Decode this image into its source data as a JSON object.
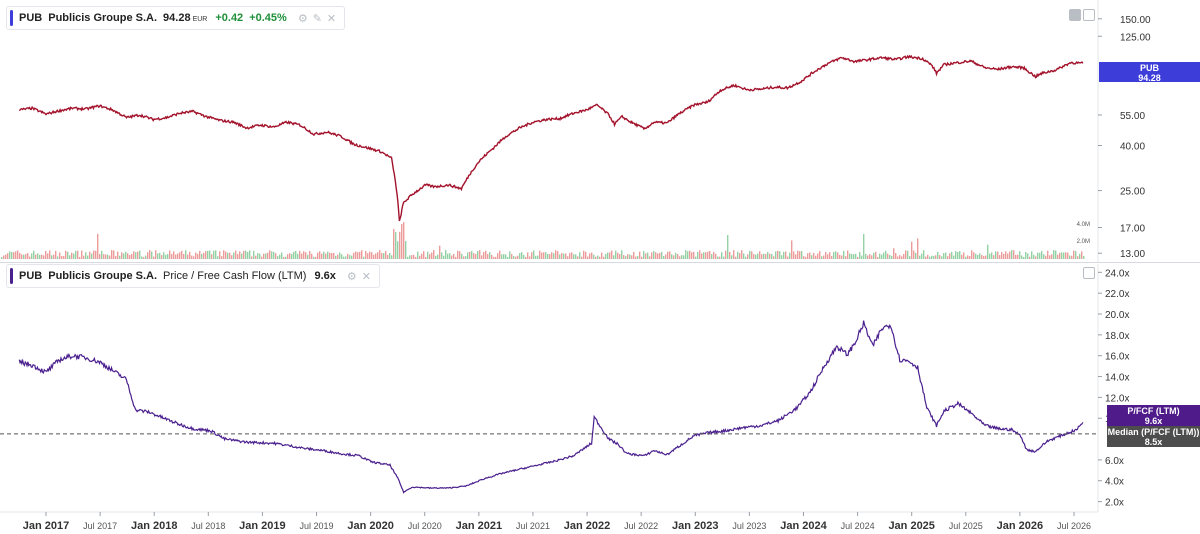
{
  "chart_data": [
    {
      "type": "line",
      "pane": "price",
      "ticker": "PUB",
      "company": "Publicis Groupe S.A.",
      "last_price": "94.28",
      "currency": "EUR",
      "change": "+0.42",
      "change_pct": "+0.45%",
      "scale": "log",
      "ylim": [
        12.5,
        175
      ],
      "y_ticks": [
        "150.00",
        "125.00",
        "55.00",
        "40.00",
        "25.00",
        "17.00",
        "13.00"
      ],
      "last_tag": {
        "label": "PUB",
        "value": "94.28",
        "color": "#3d3dd9"
      },
      "line_color": "#a3122b",
      "series": [
        {
          "values": [
            [
              "2016-09-01",
              58
            ],
            [
              "2016-10-15",
              59
            ],
            [
              "2016-12-01",
              55.5
            ],
            [
              "2017-01-15",
              57.5
            ],
            [
              "2017-03-01",
              59
            ],
            [
              "2017-04-15",
              58.5
            ],
            [
              "2017-06-01",
              60.5
            ],
            [
              "2017-07-15",
              58
            ],
            [
              "2017-09-01",
              53.5
            ],
            [
              "2017-10-15",
              55
            ],
            [
              "2017-12-01",
              52.5
            ],
            [
              "2018-01-15",
              53.5
            ],
            [
              "2018-03-01",
              56
            ],
            [
              "2018-04-15",
              57
            ],
            [
              "2018-06-01",
              54
            ],
            [
              "2018-07-15",
              52
            ],
            [
              "2018-09-01",
              51
            ],
            [
              "2018-10-15",
              48
            ],
            [
              "2018-12-01",
              49.5
            ],
            [
              "2019-01-15",
              48.5
            ],
            [
              "2019-03-01",
              51
            ],
            [
              "2019-04-15",
              49.5
            ],
            [
              "2019-06-01",
              45
            ],
            [
              "2019-07-15",
              46
            ],
            [
              "2019-09-01",
              44
            ],
            [
              "2019-10-15",
              40.5
            ],
            [
              "2019-12-01",
              39
            ],
            [
              "2020-01-15",
              37.5
            ],
            [
              "2020-02-20",
              35
            ],
            [
              "2020-03-10",
              24
            ],
            [
              "2020-03-18",
              18
            ],
            [
              "2020-04-01",
              22
            ],
            [
              "2020-05-01",
              24
            ],
            [
              "2020-06-15",
              26.5
            ],
            [
              "2020-07-15",
              26
            ],
            [
              "2020-09-01",
              26.5
            ],
            [
              "2020-10-15",
              25.5
            ],
            [
              "2020-11-15",
              30
            ],
            [
              "2020-12-15",
              34
            ],
            [
              "2021-02-01",
              39
            ],
            [
              "2021-03-15",
              44
            ],
            [
              "2021-05-01",
              48
            ],
            [
              "2021-06-15",
              51
            ],
            [
              "2021-08-01",
              52.5
            ],
            [
              "2021-09-15",
              53
            ],
            [
              "2021-11-01",
              56
            ],
            [
              "2021-12-15",
              58
            ],
            [
              "2022-01-20",
              61
            ],
            [
              "2022-03-01",
              55
            ],
            [
              "2022-03-20",
              50
            ],
            [
              "2022-04-15",
              54
            ],
            [
              "2022-05-15",
              51
            ],
            [
              "2022-07-01",
              47.5
            ],
            [
              "2022-08-01",
              51
            ],
            [
              "2022-09-15",
              50.5
            ],
            [
              "2022-10-20",
              55
            ],
            [
              "2022-12-15",
              61
            ],
            [
              "2023-02-01",
              63
            ],
            [
              "2023-03-15",
              71
            ],
            [
              "2023-05-01",
              75
            ],
            [
              "2023-06-15",
              71.5
            ],
            [
              "2023-08-01",
              72
            ],
            [
              "2023-09-15",
              73.5
            ],
            [
              "2023-11-01",
              73
            ],
            [
              "2023-12-15",
              78
            ],
            [
              "2024-02-01",
              87
            ],
            [
              "2024-03-15",
              94
            ],
            [
              "2024-05-01",
              100
            ],
            [
              "2024-06-15",
              96
            ],
            [
              "2024-08-01",
              98
            ],
            [
              "2024-09-15",
              100
            ],
            [
              "2024-11-01",
              98
            ],
            [
              "2024-12-15",
              101
            ],
            [
              "2025-02-01",
              99
            ],
            [
              "2025-03-05",
              92
            ],
            [
              "2025-03-20",
              85
            ],
            [
              "2025-04-15",
              93
            ],
            [
              "2025-06-01",
              95
            ],
            [
              "2025-07-15",
              96.5
            ],
            [
              "2025-09-01",
              90
            ],
            [
              "2025-10-15",
              88.5
            ],
            [
              "2025-12-01",
              91
            ],
            [
              "2026-01-10",
              90
            ],
            [
              "2026-02-20",
              82
            ],
            [
              "2026-03-15",
              85
            ],
            [
              "2026-05-01",
              88
            ],
            [
              "2026-06-20",
              95
            ],
            [
              "2026-07-31",
              94.28
            ]
          ]
        }
      ],
      "volume": {
        "labels": [
          "4.0M",
          "2.0M"
        ],
        "colors": [
          "#e98a8a",
          "#80c894"
        ]
      }
    },
    {
      "type": "line",
      "pane": "ratio",
      "ticker": "PUB",
      "company": "Publicis Groupe S.A.",
      "metric": "Price / Free Cash Flow (LTM)",
      "last_value": "9.6x",
      "ylim": [
        1.0,
        24.8
      ],
      "y_ticks": [
        "24.0x",
        "22.0x",
        "20.0x",
        "18.0x",
        "16.0x",
        "14.0x",
        "12.0x",
        "10.0x",
        "6.0x",
        "4.0x",
        "2.0x"
      ],
      "x_ticks": [
        "Jan 2017",
        "Jul 2017",
        "Jan 2018",
        "Jul 2018",
        "Jan 2019",
        "Jul 2019",
        "Jan 2020",
        "Jul 2020",
        "Jan 2021",
        "Jul 2021",
        "Jan 2022",
        "Jul 2022",
        "Jan 2023",
        "Jul 2023",
        "Jan 2024",
        "Jul 2024",
        "Jan 2025",
        "Jul 2025",
        "Jan 2026",
        "Jul 2026"
      ],
      "line_color": "#4a1f8e",
      "median": 8.5,
      "tags": [
        {
          "label": "P/FCF (LTM)",
          "value": "9.6x",
          "color": "#4f1a8a"
        },
        {
          "label": "Median (P/FCF (LTM))",
          "value": "8.5x",
          "color": "#4d4d4d"
        }
      ],
      "series": [
        {
          "name": "P/FCF (LTM)",
          "values": [
            [
              "2016-09-01",
              15.4
            ],
            [
              "2016-10-15",
              15.1
            ],
            [
              "2016-12-01",
              14.4
            ],
            [
              "2017-01-15",
              15.6
            ],
            [
              "2017-03-01",
              16.0
            ],
            [
              "2017-04-15",
              15.8
            ],
            [
              "2017-06-01",
              15.4
            ],
            [
              "2017-07-15",
              14.6
            ],
            [
              "2017-09-01",
              13.7
            ],
            [
              "2017-10-01",
              10.8
            ],
            [
              "2017-11-15",
              10.6
            ],
            [
              "2018-01-15",
              9.9
            ],
            [
              "2018-03-01",
              9.4
            ],
            [
              "2018-04-15",
              9.0
            ],
            [
              "2018-06-15",
              8.8
            ],
            [
              "2018-08-01",
              8.0
            ],
            [
              "2018-10-15",
              7.7
            ],
            [
              "2019-01-15",
              7.6
            ],
            [
              "2019-03-01",
              7.4
            ],
            [
              "2019-05-01",
              7.1
            ],
            [
              "2019-07-01",
              6.9
            ],
            [
              "2019-09-01",
              6.6
            ],
            [
              "2019-11-01",
              6.4
            ],
            [
              "2019-12-15",
              5.8
            ],
            [
              "2020-02-15",
              5.5
            ],
            [
              "2020-03-15",
              4.1
            ],
            [
              "2020-04-01",
              2.9
            ],
            [
              "2020-05-01",
              3.4
            ],
            [
              "2020-07-01",
              3.3
            ],
            [
              "2020-09-01",
              3.3
            ],
            [
              "2020-11-01",
              3.5
            ],
            [
              "2021-01-01",
              4.2
            ],
            [
              "2021-03-01",
              4.7
            ],
            [
              "2021-05-01",
              5.1
            ],
            [
              "2021-07-01",
              5.5
            ],
            [
              "2021-09-01",
              5.9
            ],
            [
              "2021-11-01",
              6.4
            ],
            [
              "2022-01-01",
              7.6
            ],
            [
              "2022-01-10",
              10.1
            ],
            [
              "2022-01-31",
              9.2
            ],
            [
              "2022-03-01",
              8.0
            ],
            [
              "2022-04-01",
              7.5
            ],
            [
              "2022-05-01",
              6.6
            ],
            [
              "2022-07-01",
              6.4
            ],
            [
              "2022-08-01",
              6.9
            ],
            [
              "2022-09-15",
              6.5
            ],
            [
              "2022-10-15",
              7.1
            ],
            [
              "2022-12-15",
              8.3
            ],
            [
              "2023-02-01",
              8.6
            ],
            [
              "2023-04-01",
              8.8
            ],
            [
              "2023-06-01",
              9.1
            ],
            [
              "2023-08-01",
              9.3
            ],
            [
              "2023-10-01",
              9.8
            ],
            [
              "2023-12-01",
              11.0
            ],
            [
              "2024-01-15",
              12.5
            ],
            [
              "2024-03-01",
              14.9
            ],
            [
              "2024-04-15",
              16.9
            ],
            [
              "2024-05-20",
              16.1
            ],
            [
              "2024-06-15",
              17.2
            ],
            [
              "2024-07-15",
              19.1
            ],
            [
              "2024-08-15",
              16.9
            ],
            [
              "2024-09-15",
              18.6
            ],
            [
              "2024-10-15",
              19.0
            ],
            [
              "2024-11-15",
              15.6
            ],
            [
              "2024-12-15",
              15.5
            ],
            [
              "2025-01-15",
              14.9
            ],
            [
              "2025-02-15",
              11.0
            ],
            [
              "2025-03-20",
              9.3
            ],
            [
              "2025-04-15",
              10.7
            ],
            [
              "2025-06-01",
              11.4
            ],
            [
              "2025-07-15",
              10.5
            ],
            [
              "2025-09-01",
              9.3
            ],
            [
              "2025-10-15",
              9.0
            ],
            [
              "2025-12-01",
              8.9
            ],
            [
              "2026-01-01",
              8.3
            ],
            [
              "2026-01-20",
              7.0
            ],
            [
              "2026-02-20",
              6.8
            ],
            [
              "2026-04-01",
              7.8
            ],
            [
              "2026-05-15",
              8.3
            ],
            [
              "2026-07-10",
              8.9
            ],
            [
              "2026-07-31",
              9.6
            ]
          ]
        }
      ]
    }
  ]
}
